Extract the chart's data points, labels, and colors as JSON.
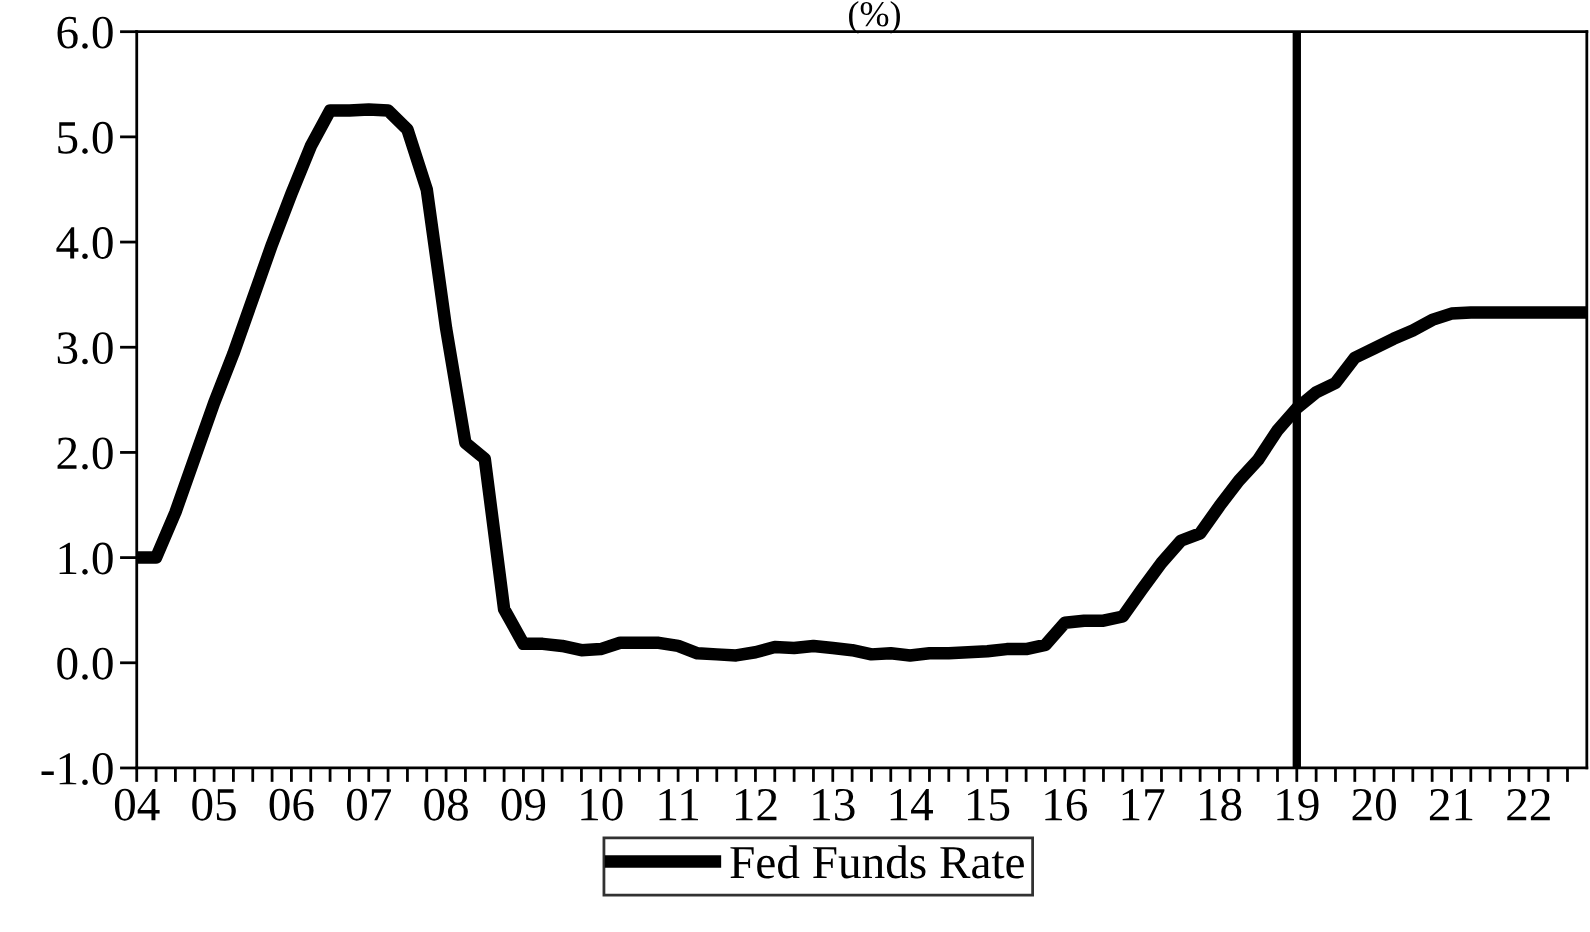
{
  "chart_data": {
    "type": "line",
    "title": "(%)",
    "x": [
      2004.0,
      2004.25,
      2004.5,
      2004.75,
      2005.0,
      2005.25,
      2005.5,
      2005.75,
      2006.0,
      2006.25,
      2006.5,
      2006.75,
      2007.0,
      2007.25,
      2007.5,
      2007.75,
      2008.0,
      2008.25,
      2008.5,
      2008.75,
      2009.0,
      2009.25,
      2009.5,
      2009.75,
      2010.0,
      2010.25,
      2010.5,
      2010.75,
      2011.0,
      2011.25,
      2011.5,
      2011.75,
      2012.0,
      2012.25,
      2012.5,
      2012.75,
      2013.0,
      2013.25,
      2013.5,
      2013.75,
      2014.0,
      2014.25,
      2014.5,
      2014.75,
      2015.0,
      2015.25,
      2015.5,
      2015.75,
      2016.0,
      2016.25,
      2016.5,
      2016.75,
      2017.0,
      2017.25,
      2017.5,
      2017.75,
      2018.0,
      2018.25,
      2018.5,
      2018.75,
      2019.0,
      2019.25,
      2019.5,
      2019.75,
      2020.0,
      2020.25,
      2020.5,
      2020.75,
      2021.0,
      2021.25,
      2021.5,
      2021.75,
      2022.0,
      2022.25,
      2022.5,
      2022.75
    ],
    "series": [
      {
        "name": "Fed Funds Rate",
        "color": "#000000",
        "values": [
          1.0,
          1.0,
          1.43,
          1.95,
          2.47,
          2.94,
          3.46,
          3.98,
          4.46,
          4.91,
          5.25,
          5.25,
          5.26,
          5.25,
          5.07,
          4.5,
          3.18,
          2.09,
          1.94,
          0.51,
          0.18,
          0.18,
          0.16,
          0.12,
          0.13,
          0.19,
          0.19,
          0.19,
          0.16,
          0.09,
          0.08,
          0.07,
          0.1,
          0.15,
          0.14,
          0.16,
          0.14,
          0.12,
          0.08,
          0.09,
          0.07,
          0.09,
          0.09,
          0.1,
          0.11,
          0.13,
          0.13,
          0.17,
          0.38,
          0.4,
          0.4,
          0.44,
          0.7,
          0.95,
          1.16,
          1.23,
          1.49,
          1.73,
          1.93,
          2.21,
          2.42,
          2.57,
          2.66,
          2.9,
          2.99,
          3.08,
          3.16,
          3.26,
          3.32,
          3.33,
          3.33,
          3.33,
          3.33,
          3.33,
          3.33,
          3.33
        ]
      }
    ],
    "xlim": [
      2004.0,
      2022.75
    ],
    "ylim": [
      -1.0,
      6.0
    ],
    "yticks": [
      {
        "value": -1,
        "label": "-1.0"
      },
      {
        "value": 0,
        "label": "0.0"
      },
      {
        "value": 1,
        "label": "1.0"
      },
      {
        "value": 2,
        "label": "2.0"
      },
      {
        "value": 3,
        "label": "3.0"
      },
      {
        "value": 4,
        "label": "4.0"
      },
      {
        "value": 5,
        "label": "5.0"
      },
      {
        "value": 6,
        "label": "6.0"
      }
    ],
    "xticks": [
      {
        "value": 2004,
        "label": "04"
      },
      {
        "value": 2004.25,
        "label": null
      },
      {
        "value": 2004.5,
        "label": null
      },
      {
        "value": 2004.75,
        "label": null
      },
      {
        "value": 2005,
        "label": "05"
      },
      {
        "value": 2005.25,
        "label": null
      },
      {
        "value": 2005.5,
        "label": null
      },
      {
        "value": 2005.75,
        "label": null
      },
      {
        "value": 2006,
        "label": "06"
      },
      {
        "value": 2006.25,
        "label": null
      },
      {
        "value": 2006.5,
        "label": null
      },
      {
        "value": 2006.75,
        "label": null
      },
      {
        "value": 2007,
        "label": "07"
      },
      {
        "value": 2007.25,
        "label": null
      },
      {
        "value": 2007.5,
        "label": null
      },
      {
        "value": 2007.75,
        "label": null
      },
      {
        "value": 2008,
        "label": "08"
      },
      {
        "value": 2008.25,
        "label": null
      },
      {
        "value": 2008.5,
        "label": null
      },
      {
        "value": 2008.75,
        "label": null
      },
      {
        "value": 2009,
        "label": "09"
      },
      {
        "value": 2009.25,
        "label": null
      },
      {
        "value": 2009.5,
        "label": null
      },
      {
        "value": 2009.75,
        "label": null
      },
      {
        "value": 2010,
        "label": "10"
      },
      {
        "value": 2010.25,
        "label": null
      },
      {
        "value": 2010.5,
        "label": null
      },
      {
        "value": 2010.75,
        "label": null
      },
      {
        "value": 2011,
        "label": "11"
      },
      {
        "value": 2011.25,
        "label": null
      },
      {
        "value": 2011.5,
        "label": null
      },
      {
        "value": 2011.75,
        "label": null
      },
      {
        "value": 2012,
        "label": "12"
      },
      {
        "value": 2012.25,
        "label": null
      },
      {
        "value": 2012.5,
        "label": null
      },
      {
        "value": 2012.75,
        "label": null
      },
      {
        "value": 2013,
        "label": "13"
      },
      {
        "value": 2013.25,
        "label": null
      },
      {
        "value": 2013.5,
        "label": null
      },
      {
        "value": 2013.75,
        "label": null
      },
      {
        "value": 2014,
        "label": "14"
      },
      {
        "value": 2014.25,
        "label": null
      },
      {
        "value": 2014.5,
        "label": null
      },
      {
        "value": 2014.75,
        "label": null
      },
      {
        "value": 2015,
        "label": "15"
      },
      {
        "value": 2015.25,
        "label": null
      },
      {
        "value": 2015.5,
        "label": null
      },
      {
        "value": 2015.75,
        "label": null
      },
      {
        "value": 2016,
        "label": "16"
      },
      {
        "value": 2016.25,
        "label": null
      },
      {
        "value": 2016.5,
        "label": null
      },
      {
        "value": 2016.75,
        "label": null
      },
      {
        "value": 2017,
        "label": "17"
      },
      {
        "value": 2017.25,
        "label": null
      },
      {
        "value": 2017.5,
        "label": null
      },
      {
        "value": 2017.75,
        "label": null
      },
      {
        "value": 2018,
        "label": "18"
      },
      {
        "value": 2018.25,
        "label": null
      },
      {
        "value": 2018.5,
        "label": null
      },
      {
        "value": 2018.75,
        "label": null
      },
      {
        "value": 2019,
        "label": "19"
      },
      {
        "value": 2019.25,
        "label": null
      },
      {
        "value": 2019.5,
        "label": null
      },
      {
        "value": 2019.75,
        "label": null
      },
      {
        "value": 2020,
        "label": "20"
      },
      {
        "value": 2020.25,
        "label": null
      },
      {
        "value": 2020.5,
        "label": null
      },
      {
        "value": 2020.75,
        "label": null
      },
      {
        "value": 2021,
        "label": "21"
      },
      {
        "value": 2021.25,
        "label": null
      },
      {
        "value": 2021.5,
        "label": null
      },
      {
        "value": 2021.75,
        "label": null
      },
      {
        "value": 2022,
        "label": "22"
      },
      {
        "value": 2022.25,
        "label": null
      },
      {
        "value": 2022.5,
        "label": null
      }
    ],
    "ref_lines": [
      {
        "axis": "x",
        "value": 2019.0,
        "color": "#000000"
      }
    ],
    "legend": "bottom",
    "grid": false,
    "marker": "none",
    "line_style": "solid"
  }
}
